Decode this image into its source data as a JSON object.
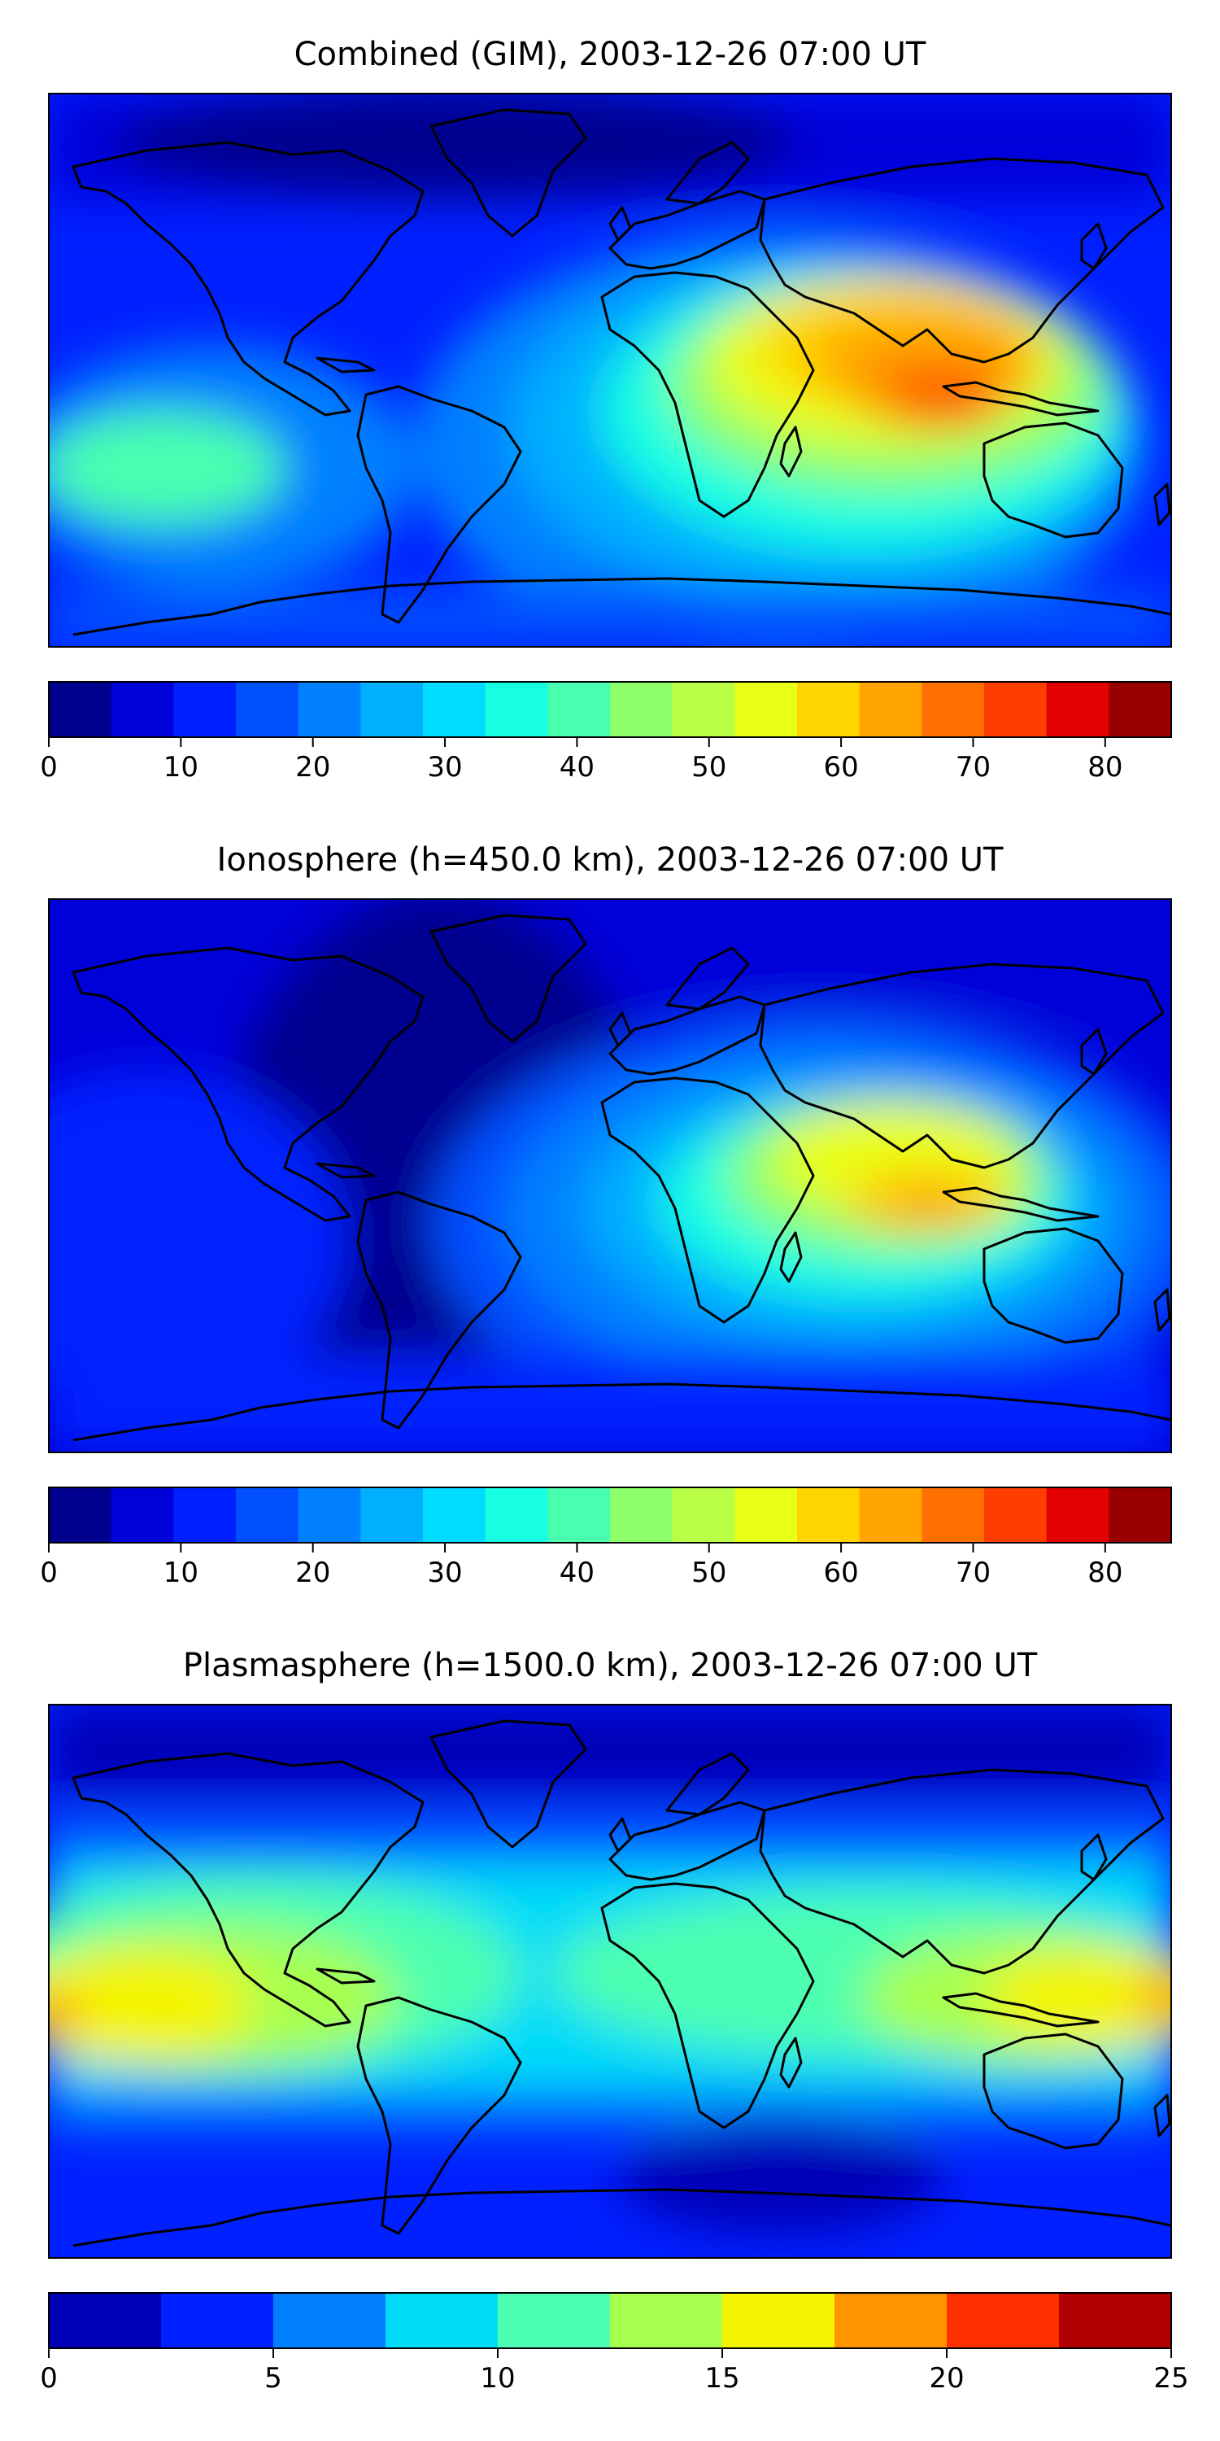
{
  "panels": [
    {
      "title": "Combined (GIM), 2003-12-26 07:00 UT",
      "colorbar": {
        "ticks": [
          "0",
          "10",
          "20",
          "30",
          "40",
          "50",
          "60",
          "70",
          "80"
        ],
        "tick_values": [
          0,
          10,
          20,
          30,
          40,
          50,
          60,
          70,
          80
        ],
        "min": 0,
        "max": 85,
        "colors": [
          "#00008f",
          "#0000d9",
          "#0020ff",
          "#0050ff",
          "#0080ff",
          "#00b0ff",
          "#00dcff",
          "#16ffe1",
          "#48ffb0",
          "#8dff6a",
          "#b9ff45",
          "#e8ff17",
          "#ffd500",
          "#ffa400",
          "#ff7000",
          "#ff3d00",
          "#e20000",
          "#9b0000"
        ]
      }
    },
    {
      "title": "Ionosphere  (h=450.0 km), 2003-12-26 07:00 UT",
      "colorbar": {
        "ticks": [
          "0",
          "10",
          "20",
          "30",
          "40",
          "50",
          "60",
          "70",
          "80"
        ],
        "tick_values": [
          0,
          10,
          20,
          30,
          40,
          50,
          60,
          70,
          80
        ],
        "min": 0,
        "max": 85,
        "colors": [
          "#00008f",
          "#0000d9",
          "#0020ff",
          "#0050ff",
          "#0080ff",
          "#00b0ff",
          "#00dcff",
          "#16ffe1",
          "#48ffb0",
          "#8dff6a",
          "#b9ff45",
          "#e8ff17",
          "#ffd500",
          "#ffa400",
          "#ff7000",
          "#ff3d00",
          "#e20000",
          "#9b0000"
        ]
      }
    },
    {
      "title": "Plasmasphere (h=1500.0 km), 2003-12-26 07:00 UT",
      "colorbar": {
        "ticks": [
          "0",
          "5",
          "10",
          "15",
          "20",
          "25"
        ],
        "tick_values": [
          0,
          5,
          10,
          15,
          20,
          25
        ],
        "min": 0,
        "max": 25,
        "colors": [
          "#0000b8",
          "#0020ff",
          "#0080ff",
          "#00dcf8",
          "#4dffb0",
          "#a8ff50",
          "#f4f400",
          "#ff9400",
          "#ff3000",
          "#b20000"
        ]
      }
    }
  ]
}
